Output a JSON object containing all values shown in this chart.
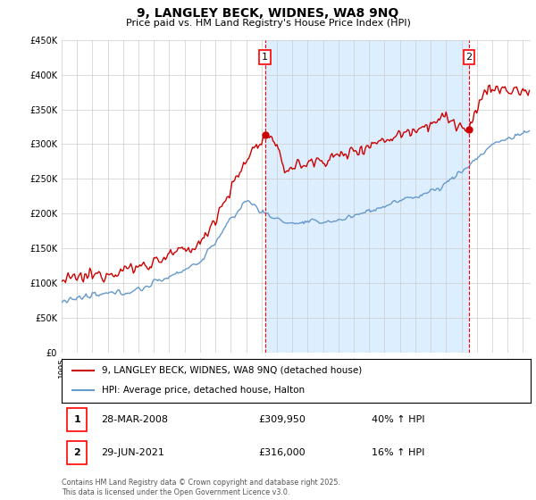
{
  "title": "9, LANGLEY BECK, WIDNES, WA8 9NQ",
  "subtitle": "Price paid vs. HM Land Registry's House Price Index (HPI)",
  "red_label": "9, LANGLEY BECK, WIDNES, WA8 9NQ (detached house)",
  "blue_label": "HPI: Average price, detached house, Halton",
  "sale1_date": "28-MAR-2008",
  "sale1_price": "£309,950",
  "sale1_hpi": "40% ↑ HPI",
  "sale2_date": "29-JUN-2021",
  "sale2_price": "£316,000",
  "sale2_hpi": "16% ↑ HPI",
  "copyright": "Contains HM Land Registry data © Crown copyright and database right 2025.\nThis data is licensed under the Open Government Licence v3.0.",
  "ylim": [
    0,
    450000
  ],
  "yticks": [
    0,
    50000,
    100000,
    150000,
    200000,
    250000,
    300000,
    350000,
    400000,
    450000
  ],
  "xlim_start": 1995.0,
  "xlim_end": 2025.5,
  "vline1_x": 2008.23,
  "vline2_x": 2021.5,
  "red_color": "#cc0000",
  "blue_color": "#6699cc",
  "shade_color": "#ddeeff",
  "grid_color": "#cccccc"
}
